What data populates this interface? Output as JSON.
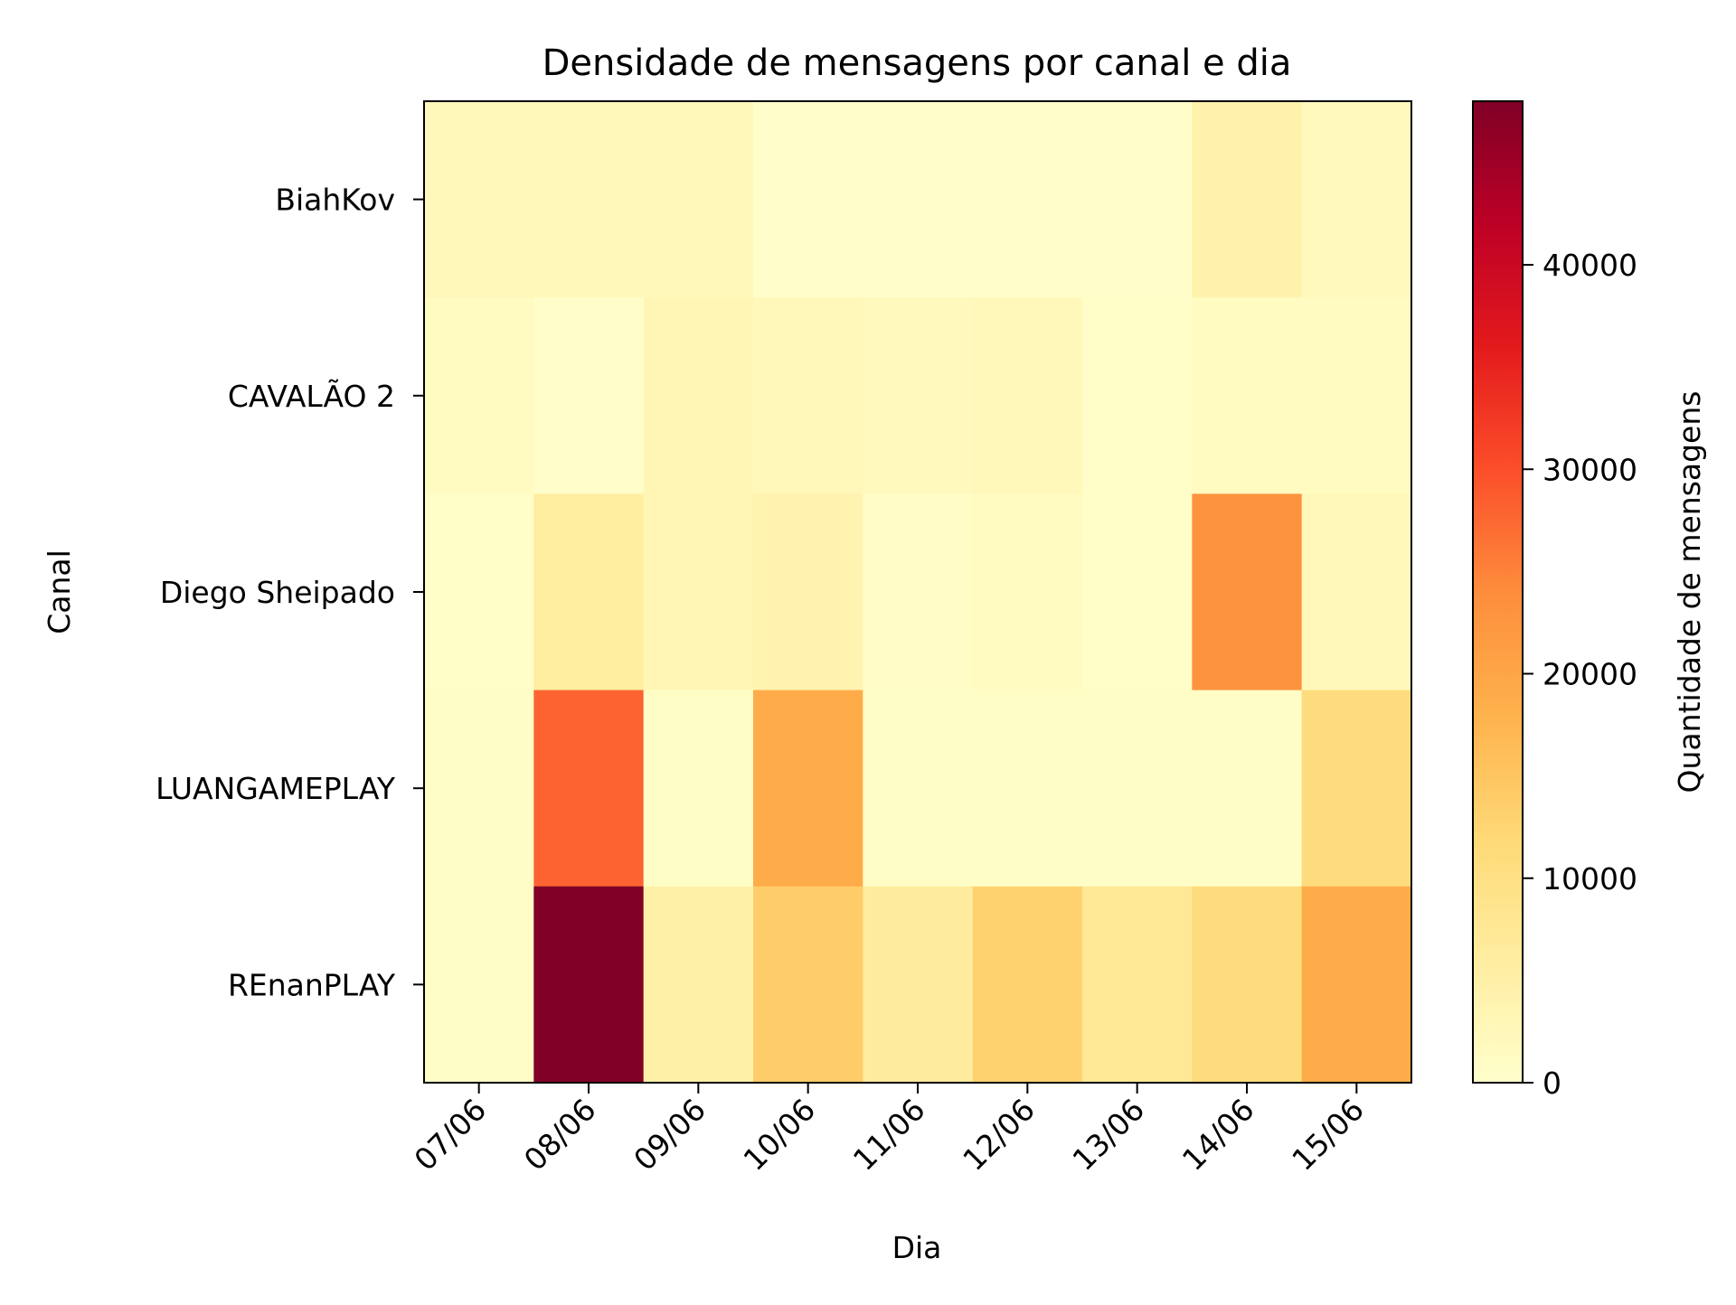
{
  "chart_data": {
    "type": "heatmap",
    "title": "Densidade de mensagens por canal e dia",
    "xlabel": "Dia",
    "ylabel": "Canal",
    "x_categories": [
      "07/06",
      "08/06",
      "09/06",
      "10/06",
      "11/06",
      "12/06",
      "13/06",
      "14/06",
      "15/06"
    ],
    "y_categories": [
      "BiahKov",
      "CAVALÃO 2",
      "Diego Sheipado",
      "LUANGAMEPLAY",
      "REnanPLAY"
    ],
    "values": [
      [
        2500,
        2500,
        2500,
        300,
        300,
        300,
        300,
        4500,
        2000
      ],
      [
        1500,
        300,
        3000,
        2500,
        2000,
        2500,
        500,
        1500,
        1500
      ],
      [
        500,
        6000,
        3000,
        4000,
        1000,
        1500,
        500,
        23000,
        2500
      ],
      [
        800,
        28000,
        800,
        19000,
        800,
        800,
        800,
        800,
        11000
      ],
      [
        800,
        48000,
        5000,
        14000,
        6500,
        13000,
        7500,
        11000,
        19000
      ]
    ],
    "colorbar": {
      "label": "Quantidade de mensagens",
      "min": 0,
      "max": 48000,
      "ticks": [
        0,
        10000,
        20000,
        30000,
        40000
      ],
      "colormap": "YlOrRd"
    },
    "grid": false
  }
}
